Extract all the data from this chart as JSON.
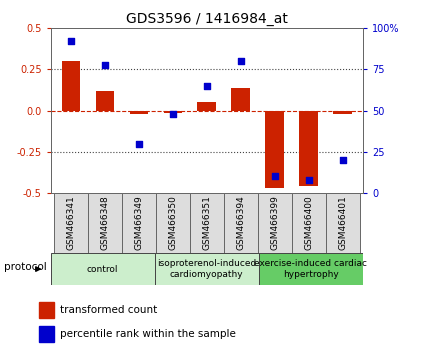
{
  "title": "GDS3596 / 1416984_at",
  "samples": [
    "GSM466341",
    "GSM466348",
    "GSM466349",
    "GSM466350",
    "GSM466351",
    "GSM466394",
    "GSM466399",
    "GSM466400",
    "GSM466401"
  ],
  "bar_values": [
    0.3,
    0.12,
    -0.02,
    -0.015,
    0.05,
    0.14,
    -0.47,
    -0.46,
    -0.02
  ],
  "scatter_values_pct": [
    92,
    78,
    30,
    48,
    65,
    80,
    10,
    8,
    20
  ],
  "ylim_left": [
    -0.5,
    0.5
  ],
  "ylim_right": [
    0,
    100
  ],
  "yticks_left": [
    -0.5,
    -0.25,
    0.0,
    0.25,
    0.5
  ],
  "yticks_right": [
    0,
    25,
    50,
    75,
    100
  ],
  "ytick_labels_right": [
    "0",
    "25",
    "50",
    "75",
    "100%"
  ],
  "bar_color": "#cc2200",
  "scatter_color": "#0000cc",
  "zero_line_color": "#cc2200",
  "dotted_line_color": "#444444",
  "groups": [
    {
      "label": "control",
      "start": 0,
      "end": 3,
      "color": "#cceecc"
    },
    {
      "label": "isoproterenol-induced\ncardiomyopathy",
      "start": 3,
      "end": 6,
      "color": "#cceecc"
    },
    {
      "label": "exercise-induced cardiac\nhypertrophy",
      "start": 6,
      "end": 9,
      "color": "#66cc66"
    }
  ],
  "protocol_label": "protocol",
  "legend_bar_label": "transformed count",
  "legend_scatter_label": "percentile rank within the sample",
  "tick_label_fontsize": 7,
  "title_fontsize": 10,
  "sample_label_fontsize": 6.5,
  "group_label_fontsize": 6.5,
  "legend_fontsize": 7.5
}
